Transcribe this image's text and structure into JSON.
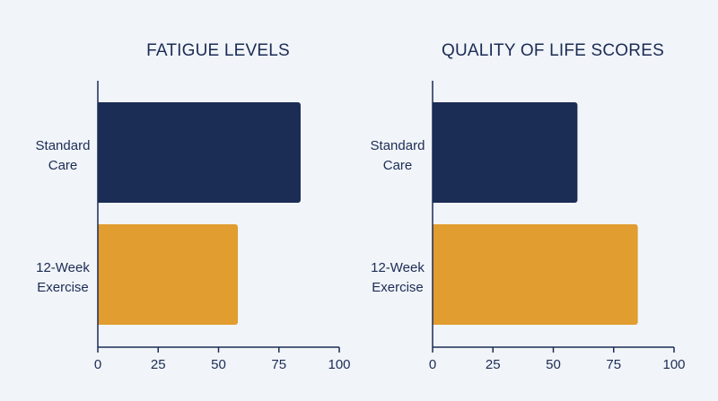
{
  "chart_data": [
    {
      "type": "bar",
      "orientation": "horizontal",
      "title": "FATIGUE LEVELS",
      "categories": [
        "Standard|Care",
        "12-Week|Exercise"
      ],
      "values": [
        84,
        58
      ],
      "bar_colors": [
        "#1b2c55",
        "#e19d30"
      ],
      "xlim": [
        0,
        100
      ],
      "xticks": [
        0,
        25,
        50,
        75,
        100
      ],
      "grid": false,
      "legend": "none"
    },
    {
      "type": "bar",
      "orientation": "horizontal",
      "title": "QUALITY OF LIFE SCORES",
      "categories": [
        "Standard|Care",
        "12-Week|Exercise"
      ],
      "values": [
        60,
        85
      ],
      "bar_colors": [
        "#1b2c55",
        "#e19d30"
      ],
      "xlim": [
        0,
        100
      ],
      "xticks": [
        0,
        25,
        50,
        75,
        100
      ],
      "grid": false,
      "legend": "none"
    }
  ],
  "colors": {
    "background": "#f1f4f8",
    "text": "#1b2c55"
  }
}
